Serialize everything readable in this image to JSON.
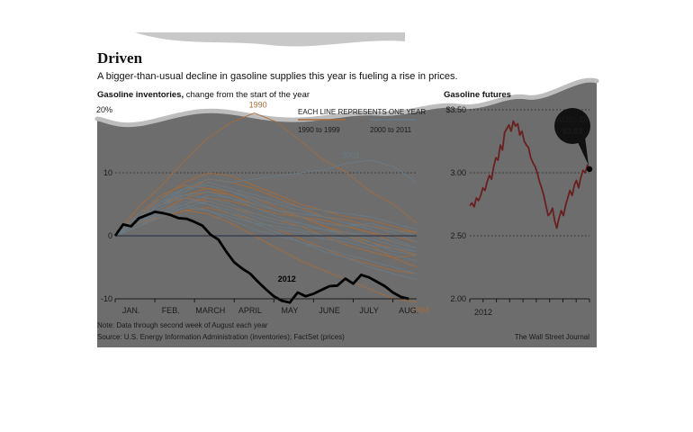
{
  "header": {
    "title": "Driven",
    "subtitle": "A bigger-than-usual decline in gasoline supplies this year is fueling a rise in prices."
  },
  "left_panel": {
    "title_bold": "Gasoline inventories,",
    "title_rest": " change from the start of the year",
    "legend_heading": "EACH LINE REPRESENTS ONE YEAR",
    "legend_items": [
      "1990 to 1999",
      "2000 to 2011"
    ]
  },
  "right_panel": {
    "title": "Gasoline futures",
    "callout_date": "AUG. 20",
    "callout_value": "$3.03"
  },
  "footer": {
    "note": "Note: Data through second week of August each year",
    "source": "Source: U.S. Energy Information Administration (inventories); FactSet (prices)",
    "credit": "The Wall Street Journal"
  },
  "colors": {
    "background": "#6d6d6d",
    "line_1990s": "#a56a3a",
    "line_2000s": "#687a86",
    "line_2012": "#000000",
    "futures_line": "#6a1f1f",
    "grid": "#2e2e2e"
  },
  "chart_data": [
    {
      "type": "line",
      "ylabel": "",
      "ylim": [
        -10,
        20
      ],
      "yticks": [
        {
          "value": 20,
          "label": "20%"
        },
        {
          "value": 10,
          "label": "10"
        },
        {
          "value": 0,
          "label": "0"
        },
        {
          "value": -10,
          "label": "-10"
        }
      ],
      "xlim": [
        0,
        7.6
      ],
      "categories": [
        "JAN.",
        "FEB.",
        "MARCH",
        "APRIL",
        "MAY",
        "JUNE",
        "JULY",
        "AUG."
      ],
      "grid": true,
      "legend": "top-right",
      "highlight": {
        "name": "2012",
        "x": [
          0,
          0.2,
          0.4,
          0.6,
          0.8,
          1.0,
          1.2,
          1.4,
          1.6,
          1.8,
          2.0,
          2.2,
          2.4,
          2.6,
          2.8,
          3.0,
          3.2,
          3.4,
          3.6,
          3.8,
          4.0,
          4.2,
          4.4,
          4.6,
          4.8,
          5.0,
          5.2,
          5.4,
          5.6,
          5.8,
          6.0,
          6.2,
          6.4,
          6.6,
          6.8,
          7.0,
          7.2,
          7.4
        ],
        "values": [
          0,
          1.8,
          1.5,
          2.8,
          3.3,
          3.8,
          3.6,
          3.3,
          2.8,
          2.7,
          2.2,
          1.6,
          0.2,
          -0.6,
          -2.5,
          -4.2,
          -5.2,
          -6.0,
          -7.3,
          -8.5,
          -9.6,
          -10.3,
          -10.6,
          -9.0,
          -9.6,
          -9.2,
          -8.6,
          -8.0,
          -7.9,
          -6.8,
          -7.6,
          -6.2,
          -6.6,
          -7.3,
          -8.0,
          -9.0,
          -9.7,
          -10.0
        ]
      },
      "series_1990s": [
        {
          "name": "1990",
          "values": [
            0,
            4.5,
            8,
            12,
            15.5,
            18,
            19.5,
            18,
            15,
            12,
            10,
            7,
            5,
            2
          ]
        },
        {
          "values": [
            0,
            3,
            5,
            6.5,
            7.5,
            7,
            6,
            4.5,
            3,
            1.5,
            0.5,
            -1,
            -2,
            -3
          ]
        },
        {
          "values": [
            0,
            2.5,
            5,
            7,
            9,
            8.5,
            7.5,
            6,
            4.5,
            3,
            2.5,
            1.5,
            1,
            0.5
          ]
        },
        {
          "values": [
            0,
            2,
            4,
            6,
            5.5,
            4.5,
            3.5,
            2.5,
            1.5,
            0,
            -1.5,
            -2.5,
            -3.5,
            -3
          ]
        },
        {
          "values": [
            0,
            3,
            6,
            8.5,
            10,
            9.5,
            8,
            6.5,
            5,
            4,
            3,
            2.5,
            1.5,
            0.5
          ]
        },
        {
          "values": [
            0,
            1.5,
            3,
            4,
            4.5,
            3.5,
            2.5,
            1,
            -0.5,
            -2,
            -3.5,
            -4.5,
            -5.5,
            -6
          ]
        },
        {
          "values": [
            0,
            2,
            3.5,
            5,
            6,
            5.5,
            4.5,
            3.5,
            3,
            2,
            1.5,
            0.5,
            -1,
            -2
          ]
        },
        {
          "values": [
            0,
            3.5,
            6.5,
            8,
            7.5,
            6.5,
            5,
            4,
            3,
            2.5,
            1.5,
            0.5,
            0,
            -1
          ]
        },
        {
          "values": [
            0,
            2.5,
            4,
            6,
            7,
            6.5,
            5,
            4,
            3,
            1.5,
            0,
            -1.5,
            -3.5,
            -5
          ]
        },
        {
          "name": "1994",
          "values": [
            0,
            2,
            3,
            4,
            3.5,
            2,
            0,
            -2,
            -4,
            -5.5,
            -7,
            -8.5,
            -10,
            -10.5
          ]
        }
      ],
      "series_2000s": [
        {
          "name": "2001",
          "values": [
            0,
            2.5,
            5,
            7.5,
            9,
            8.5,
            9,
            9.5,
            10,
            10.5,
            11.5,
            12,
            11,
            8.5
          ]
        },
        {
          "values": [
            0,
            3,
            5.5,
            6.5,
            6,
            5,
            3.5,
            2.5,
            2,
            1,
            0.5,
            0,
            -1,
            -2
          ]
        },
        {
          "values": [
            0,
            2,
            4,
            5.5,
            5,
            4,
            2.5,
            1,
            0.5,
            -0.5,
            -1,
            -2,
            -3,
            -4
          ]
        },
        {
          "values": [
            0,
            3.5,
            6,
            7.5,
            8,
            7,
            5.5,
            4,
            3,
            2,
            1.5,
            2,
            1,
            0
          ]
        },
        {
          "values": [
            0,
            1.5,
            3.5,
            5,
            6.5,
            6,
            4.5,
            3,
            2,
            1,
            0,
            -1,
            -2.5,
            -3
          ]
        },
        {
          "values": [
            0,
            2,
            4.5,
            6.5,
            7,
            6,
            5,
            4,
            3.5,
            3,
            2,
            1.5,
            0.5,
            -1
          ]
        },
        {
          "values": [
            0,
            2.5,
            4,
            5,
            4,
            2.5,
            1,
            0,
            -1,
            -2,
            -3,
            -4,
            -5,
            -6
          ]
        },
        {
          "values": [
            0,
            1.5,
            3,
            4.5,
            5.5,
            4.5,
            3,
            2,
            1.5,
            1,
            0.5,
            -0.5,
            -1.5,
            -2.5
          ]
        },
        {
          "values": [
            0,
            3,
            5,
            6,
            5,
            3.5,
            2,
            0.5,
            -1,
            -2.5,
            -3.5,
            -5,
            -6,
            -7
          ]
        },
        {
          "values": [
            0,
            2.5,
            5,
            7,
            8.5,
            7.5,
            6.5,
            5.5,
            4.5,
            4,
            3.5,
            3,
            2,
            1
          ]
        },
        {
          "values": [
            0,
            2,
            3.5,
            4.5,
            4,
            3,
            2,
            1.5,
            1,
            0,
            -0.5,
            -1.5,
            -2,
            -2.5
          ]
        },
        {
          "values": [
            0,
            3,
            5.5,
            7.5,
            8,
            7,
            6,
            5,
            4,
            3,
            2,
            1,
            -0.5,
            -2
          ]
        }
      ]
    },
    {
      "type": "line",
      "ylabel": "",
      "ylim": [
        2.0,
        3.5
      ],
      "yticks": [
        {
          "value": 3.5,
          "label": "$3.50"
        },
        {
          "value": 3.0,
          "label": "3.00"
        },
        {
          "value": 2.5,
          "label": "2.50"
        },
        {
          "value": 2.0,
          "label": "2.00"
        }
      ],
      "xlabel": "",
      "xtick_labels": [
        "2012"
      ],
      "grid": true,
      "series": [
        {
          "values": [
            2.74,
            2.76,
            2.73,
            2.8,
            2.78,
            2.82,
            2.88,
            2.86,
            2.93,
            2.98,
            2.95,
            3.05,
            3.12,
            3.1,
            3.22,
            3.18,
            3.32,
            3.35,
            3.38,
            3.33,
            3.41,
            3.37,
            3.39,
            3.3,
            3.33,
            3.25,
            3.22,
            3.2,
            3.12,
            3.08,
            3.05,
            3.0,
            2.93,
            2.88,
            2.82,
            2.74,
            2.66,
            2.68,
            2.72,
            2.62,
            2.56,
            2.64,
            2.7,
            2.66,
            2.74,
            2.8,
            2.86,
            2.82,
            2.9,
            2.94,
            2.88,
            2.96,
            3.02,
            3.0,
            3.06,
            3.03
          ]
        }
      ],
      "annotations": [
        {
          "label": "AUG. 20",
          "value": 3.03
        }
      ]
    }
  ]
}
